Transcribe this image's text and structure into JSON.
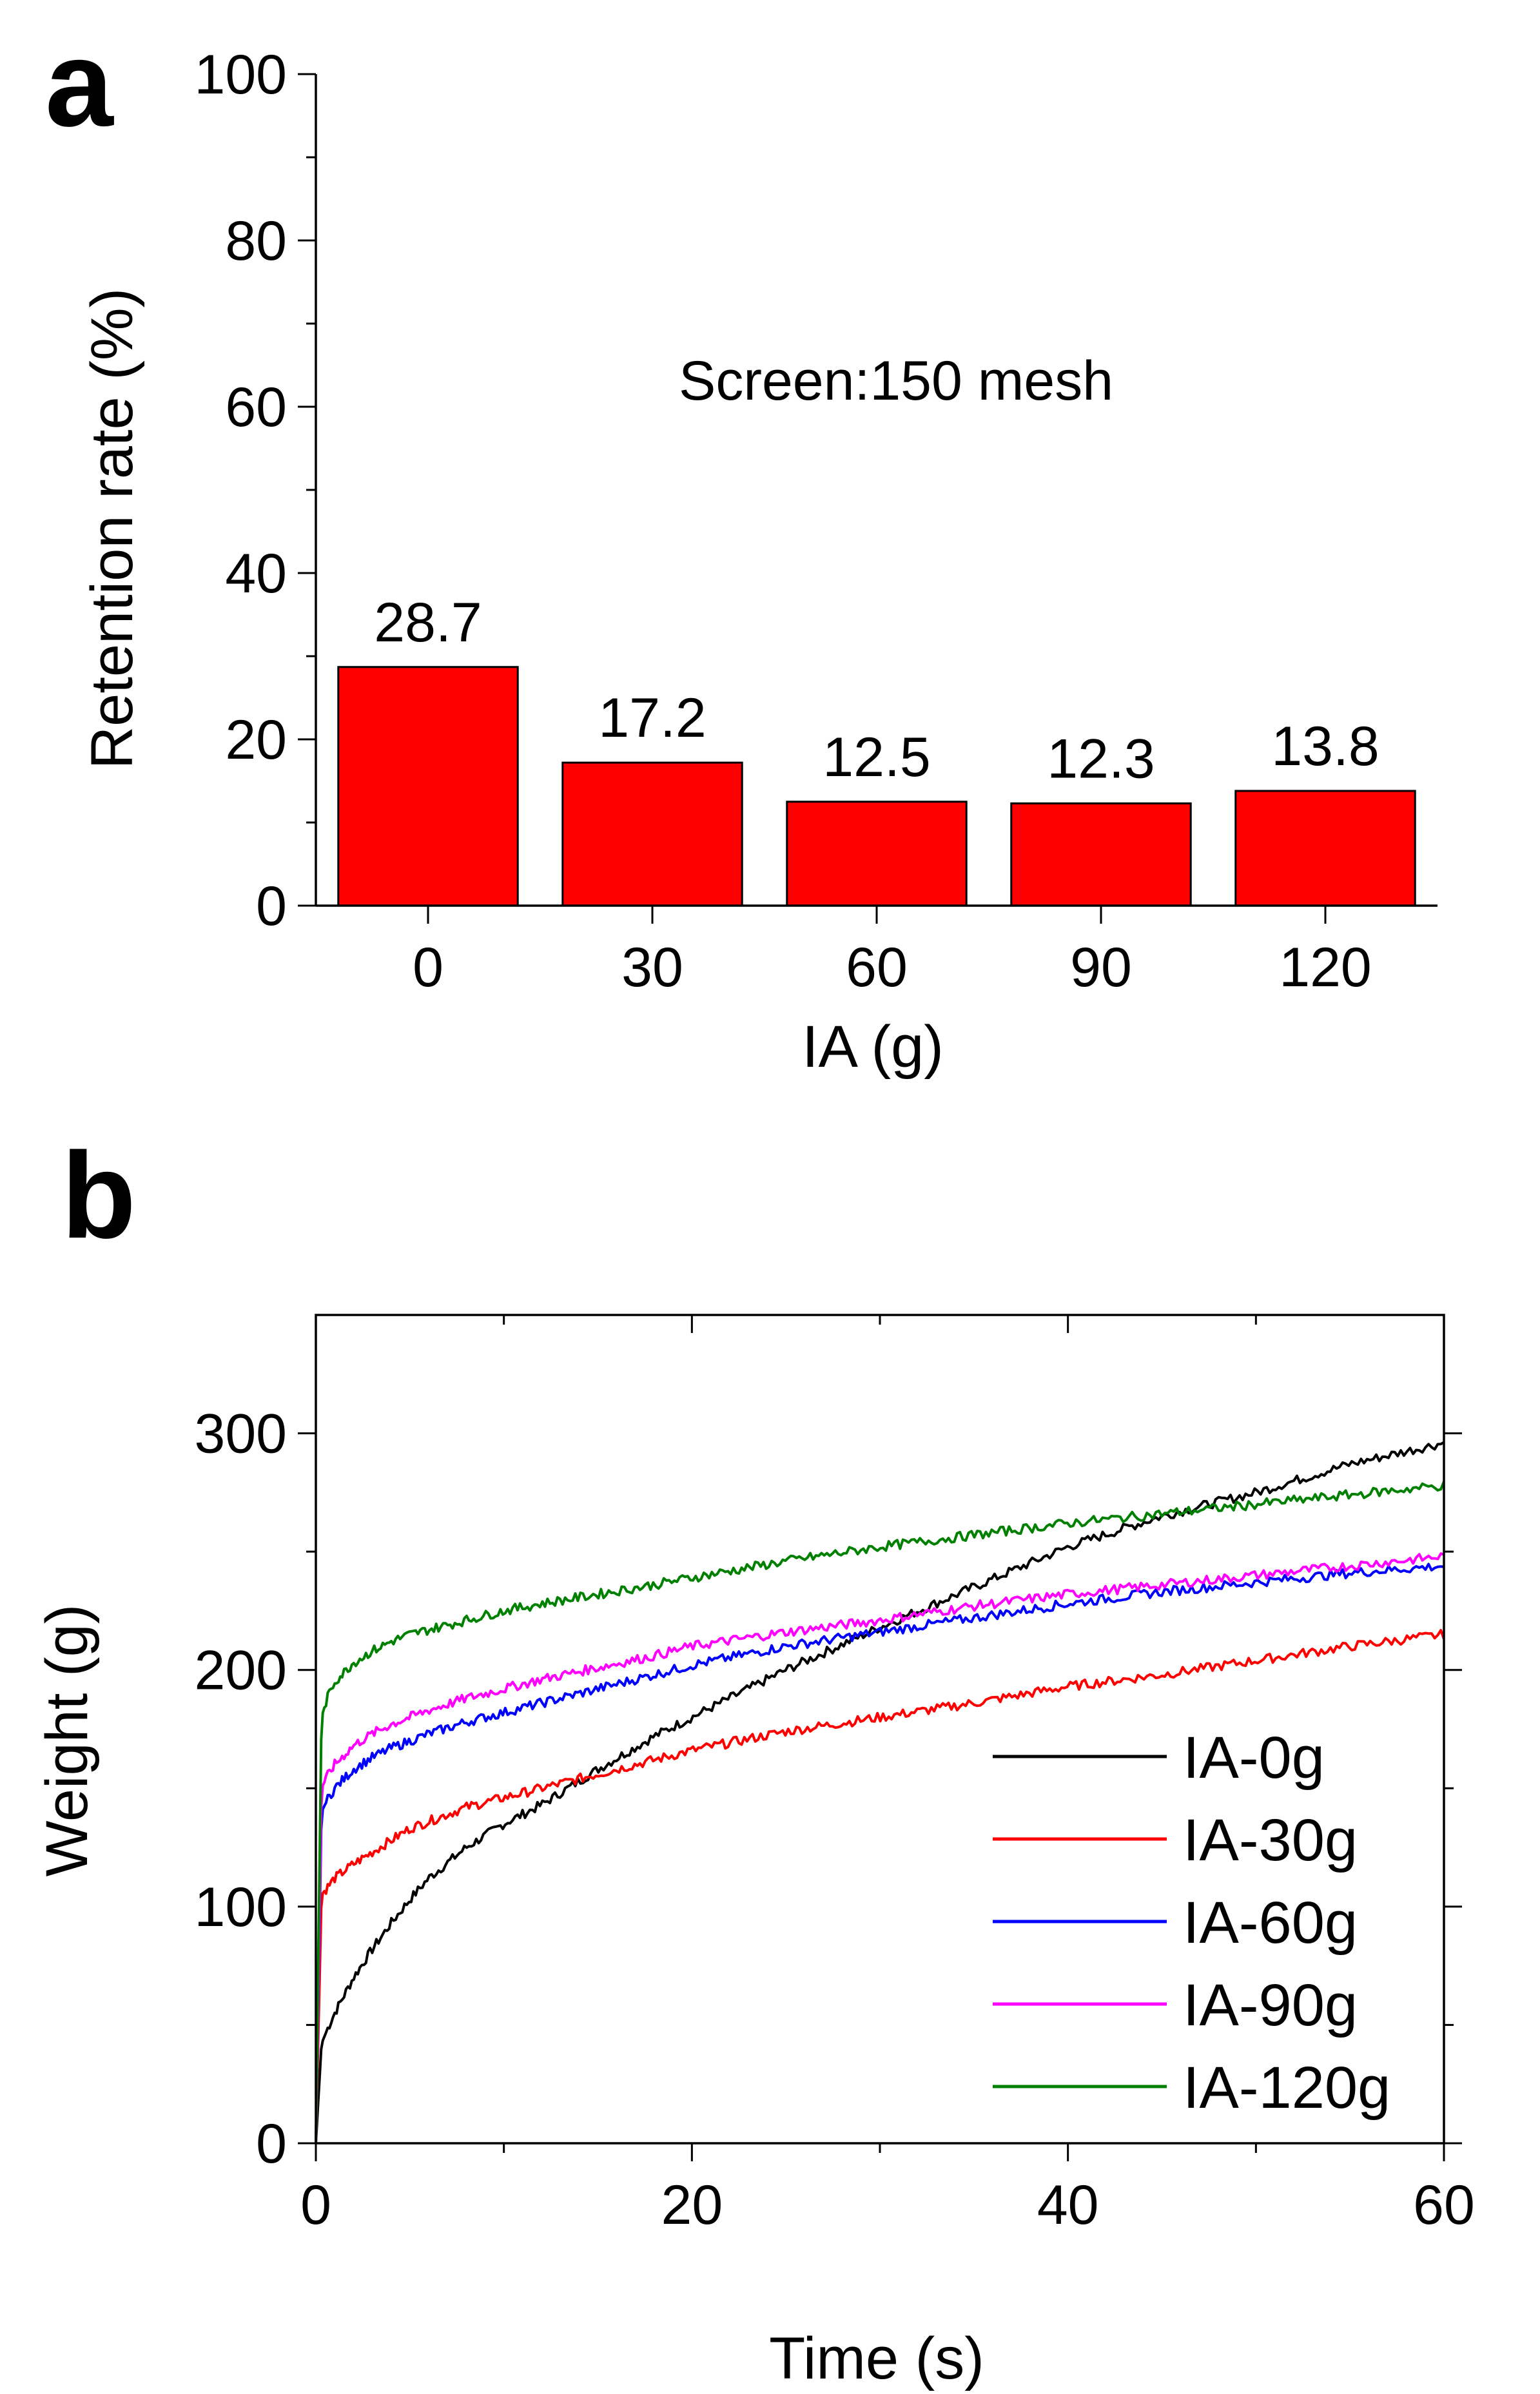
{
  "chart_data": [
    {
      "panel": "a",
      "type": "bar",
      "categories": [
        "0",
        "30",
        "60",
        "90",
        "120"
      ],
      "values": [
        28.7,
        17.2,
        12.5,
        12.3,
        13.8
      ],
      "value_labels": [
        "28.7",
        "17.2",
        "12.5",
        "12.3",
        "13.8"
      ],
      "bar_color": "#ff0000",
      "xlabel": "IA (g)",
      "ylabel": "Retention rate (%)",
      "ylim": [
        0,
        100
      ],
      "yticks": [
        "0",
        "20",
        "40",
        "60",
        "80",
        "100"
      ],
      "annotation": "Screen:150 mesh"
    },
    {
      "panel": "b",
      "type": "line",
      "xlabel": "Time (s)",
      "ylabel": "Weight (g)",
      "xlim": [
        0,
        60
      ],
      "ylim": [
        0,
        350
      ],
      "xticks": [
        "0",
        "20",
        "40",
        "60"
      ],
      "yticks": [
        "0",
        "100",
        "200",
        "300"
      ],
      "legend_position": "lower-right",
      "series": [
        {
          "name": "IA-0g",
          "color": "#000000",
          "x": [
            0,
            0.3,
            0.6,
            1,
            2,
            3,
            4,
            5,
            6,
            8,
            10,
            12,
            15,
            18,
            20,
            25,
            30,
            35,
            40,
            45,
            50,
            55,
            60
          ],
          "y": [
            0,
            42,
            48,
            55,
            70,
            82,
            93,
            103,
            112,
            125,
            135,
            143,
            158,
            172,
            180,
            200,
            218,
            235,
            252,
            265,
            275,
            287,
            296
          ]
        },
        {
          "name": "IA-30g",
          "color": "#ff0000",
          "x": [
            0,
            0.3,
            0.6,
            1,
            2,
            3,
            4,
            5,
            6,
            8,
            10,
            12,
            15,
            18,
            20,
            25,
            30,
            35,
            40,
            45,
            50,
            55,
            60
          ],
          "y": [
            0,
            105,
            108,
            112,
            118,
            123,
            128,
            133,
            136,
            142,
            146,
            150,
            156,
            162,
            166,
            174,
            180,
            186,
            193,
            198,
            204,
            210,
            215
          ]
        },
        {
          "name": "IA-60g",
          "color": "#0000ff",
          "x": [
            0,
            0.3,
            0.6,
            1,
            2,
            3,
            4,
            5,
            6,
            8,
            10,
            12,
            15,
            18,
            20,
            25,
            30,
            35,
            40,
            45,
            50,
            55,
            60
          ],
          "y": [
            0,
            140,
            145,
            150,
            158,
            163,
            167,
            170,
            173,
            178,
            182,
            186,
            192,
            198,
            202,
            210,
            216,
            222,
            228,
            233,
            237,
            241,
            244
          ]
        },
        {
          "name": "IA-90g",
          "color": "#ff00ff",
          "x": [
            0,
            0.3,
            0.6,
            1,
            2,
            3,
            4,
            5,
            6,
            8,
            10,
            12,
            15,
            18,
            20,
            25,
            30,
            35,
            40,
            45,
            50,
            55,
            60
          ],
          "y": [
            0,
            150,
            155,
            160,
            168,
            173,
            177,
            180,
            183,
            188,
            192,
            196,
            201,
            206,
            210,
            216,
            221,
            227,
            232,
            236,
            240,
            244,
            248
          ]
        },
        {
          "name": "IA-120g",
          "color": "#008000",
          "x": [
            0,
            0.3,
            0.6,
            1,
            2,
            3,
            4,
            5,
            6,
            8,
            10,
            12,
            15,
            18,
            20,
            25,
            30,
            35,
            40,
            45,
            50,
            55,
            60
          ],
          "y": [
            0,
            180,
            188,
            195,
            203,
            208,
            212,
            215,
            217,
            221,
            225,
            228,
            232,
            236,
            239,
            246,
            252,
            257,
            262,
            266,
            270,
            274,
            278
          ]
        }
      ]
    }
  ],
  "panel_labels": {
    "a": "a",
    "b": "b"
  }
}
